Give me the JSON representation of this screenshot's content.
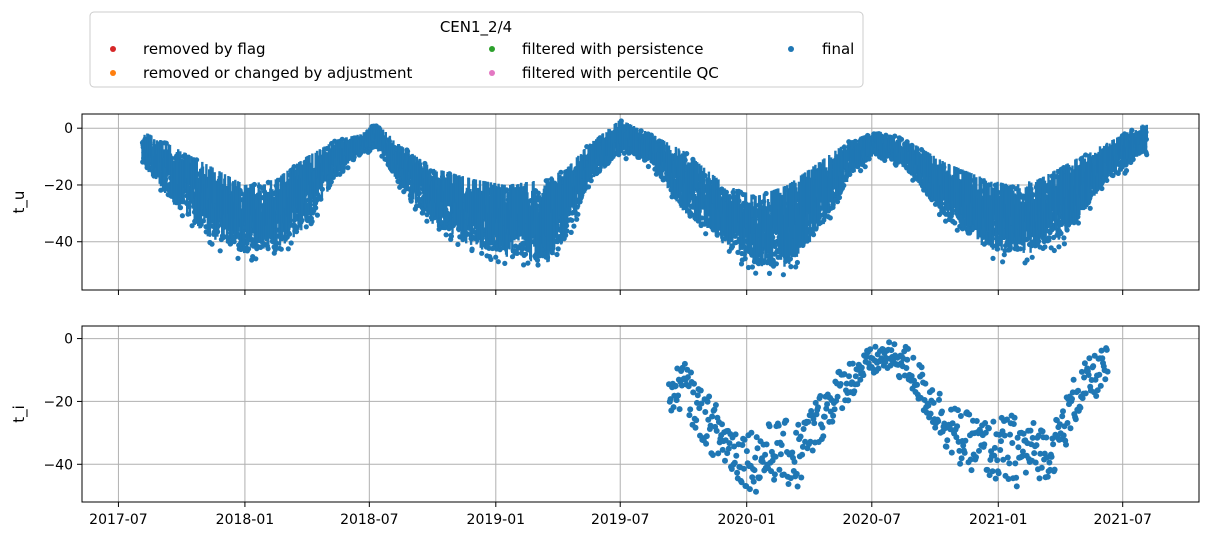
{
  "chart_data": {
    "type": "scatter",
    "legend": {
      "title": "CEN1_2/4",
      "placement": "top-left, above plots",
      "entries": [
        {
          "label": "removed by flag",
          "color": "#d62728"
        },
        {
          "label": "removed or changed by adjustment",
          "color": "#ff7f0e"
        },
        {
          "label": "filtered with persistence",
          "color": "#2ca02c"
        },
        {
          "label": "filtered with percentile QC",
          "color": "#e377c2"
        },
        {
          "label": "final",
          "color": "#1f77b4"
        }
      ]
    },
    "x_ticks": [
      "2017-07",
      "2018-01",
      "2018-07",
      "2019-01",
      "2019-07",
      "2020-01",
      "2020-07",
      "2021-01",
      "2021-07"
    ],
    "xlim": [
      "2017-05-09",
      "2021-10-20"
    ],
    "grid": true,
    "panels": [
      {
        "ylabel": "t_u",
        "ylim": [
          -57,
          5
        ],
        "y_ticks": [
          0,
          -20,
          -40
        ],
        "series": {
          "label": "final",
          "color": "#1f77b4",
          "start": "2017-08-05",
          "end": "2021-08-05",
          "envelope": [
            [
              "2017-08-05",
              -1,
              -14
            ],
            [
              "2017-09-15",
              -6,
              -28
            ],
            [
              "2017-11-01",
              -12,
              -40
            ],
            [
              "2018-01-01",
              -20,
              -48
            ],
            [
              "2018-02-15",
              -18,
              -46
            ],
            [
              "2018-04-01",
              -10,
              -38
            ],
            [
              "2018-05-15",
              -4,
              -18
            ],
            [
              "2018-06-20",
              -2,
              -10
            ],
            [
              "2018-07-10",
              2,
              -8
            ],
            [
              "2018-08-15",
              -6,
              -22
            ],
            [
              "2018-10-01",
              -14,
              -36
            ],
            [
              "2018-12-01",
              -18,
              -46
            ],
            [
              "2019-01-15",
              -20,
              -48
            ],
            [
              "2019-03-15",
              -18,
              -52
            ],
            [
              "2019-04-15",
              -14,
              -42
            ],
            [
              "2019-05-15",
              -6,
              -22
            ],
            [
              "2019-07-01",
              3,
              -10
            ],
            [
              "2019-08-15",
              -2,
              -14
            ],
            [
              "2019-10-01",
              -8,
              -32
            ],
            [
              "2019-12-01",
              -20,
              -44
            ],
            [
              "2020-01-15",
              -24,
              -52
            ],
            [
              "2020-03-01",
              -20,
              -52
            ],
            [
              "2020-04-15",
              -12,
              -40
            ],
            [
              "2020-06-01",
              -4,
              -18
            ],
            [
              "2020-07-10",
              -1,
              -10
            ],
            [
              "2020-08-20",
              -4,
              -16
            ],
            [
              "2020-10-15",
              -12,
              -34
            ],
            [
              "2020-12-15",
              -18,
              -46
            ],
            [
              "2021-01-20",
              -20,
              -48
            ],
            [
              "2021-03-01",
              -18,
              -47
            ],
            [
              "2021-04-15",
              -12,
              -40
            ],
            [
              "2021-06-01",
              -6,
              -22
            ],
            [
              "2021-08-05",
              2,
              -10
            ]
          ]
        }
      },
      {
        "ylabel": "t_i",
        "ylim": [
          -52,
          4
        ],
        "y_ticks": [
          0,
          -20,
          -40
        ],
        "series": {
          "label": "final",
          "color": "#1f77b4",
          "start": "2019-09-10",
          "end": "2021-06-10",
          "envelope": [
            [
              "2019-09-10",
              -14,
              -24
            ],
            [
              "2019-10-01",
              -6,
              -22
            ],
            [
              "2019-10-20",
              -14,
              -30
            ],
            [
              "2019-11-15",
              -20,
              -38
            ],
            [
              "2019-12-20",
              -28,
              -46
            ],
            [
              "2020-01-15",
              -28,
              -49
            ],
            [
              "2020-02-15",
              -26,
              -45
            ],
            [
              "2020-03-15",
              -26,
              -49
            ],
            [
              "2020-04-01",
              -22,
              -40
            ],
            [
              "2020-04-20",
              -16,
              -32
            ],
            [
              "2020-05-20",
              -8,
              -22
            ],
            [
              "2020-06-20",
              -4,
              -14
            ],
            [
              "2020-07-20",
              -1,
              -10
            ],
            [
              "2020-08-20",
              -2,
              -14
            ],
            [
              "2020-09-10",
              -8,
              -22
            ],
            [
              "2020-10-01",
              -14,
              -30
            ],
            [
              "2020-11-01",
              -22,
              -40
            ],
            [
              "2020-12-15",
              -26,
              -44
            ],
            [
              "2021-01-20",
              -24,
              -48
            ],
            [
              "2021-02-20",
              -26,
              -45
            ],
            [
              "2021-03-20",
              -28,
              -44
            ],
            [
              "2021-04-10",
              -18,
              -34
            ],
            [
              "2021-04-25",
              -10,
              -26
            ],
            [
              "2021-05-15",
              -6,
              -20
            ],
            [
              "2021-06-10",
              -2,
              -16
            ]
          ]
        }
      }
    ]
  }
}
